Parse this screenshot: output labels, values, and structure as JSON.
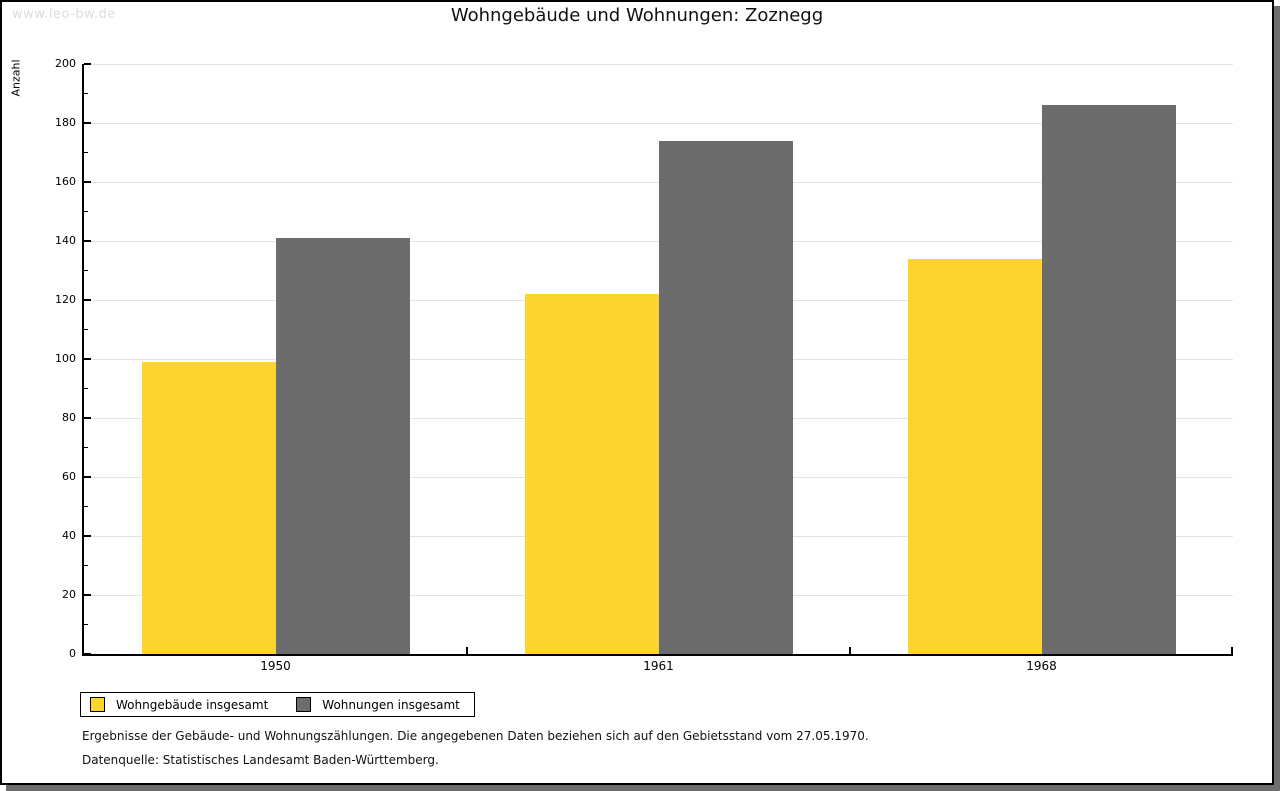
{
  "watermark": "www.leo-bw.de",
  "chart_data": {
    "type": "bar",
    "title": "Wohngebäude und Wohnungen: Zoznegg",
    "xlabel": "",
    "ylabel": "Anzahl",
    "categories": [
      "1950",
      "1961",
      "1968"
    ],
    "series": [
      {
        "name": "Wohngebäude insgesamt",
        "color": "#fcd42d",
        "values": [
          99,
          122,
          134
        ]
      },
      {
        "name": "Wohnungen insgesamt",
        "color": "#6c6c6c",
        "values": [
          141,
          174,
          186
        ]
      }
    ],
    "ylim": [
      0,
      200
    ],
    "ytick_step": 20,
    "ytick_minor_step": 10,
    "grid": "horizontal-major",
    "legend_position": "bottom-left"
  },
  "footer": {
    "note": "Ergebnisse der Gebäude- und Wohnungszählungen. Die angegebenen Daten beziehen sich auf den Gebietsstand vom 27.05.1970.",
    "source": "Datenquelle: Statistisches Landesamt Baden-Württemberg."
  },
  "colors": {
    "bar_yellow": "#fcd42d",
    "bar_gray": "#6c6c6c",
    "gridline": "#e2e2e2",
    "axis": "#000000",
    "watermark": "#dcdcdc",
    "page_shadow": "#6e6e6e"
  }
}
